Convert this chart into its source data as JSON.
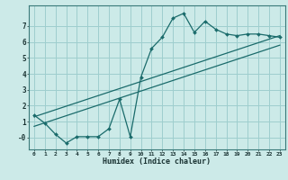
{
  "xlabel": "Humidex (Indice chaleur)",
  "ylabel": "",
  "bg_color": "#cceae8",
  "grid_color": "#9ecece",
  "line_color": "#1a6b6b",
  "xlim": [
    -0.5,
    23.5
  ],
  "ylim": [
    -0.75,
    8.3
  ],
  "xticks": [
    0,
    1,
    2,
    3,
    4,
    5,
    6,
    7,
    8,
    9,
    10,
    11,
    12,
    13,
    14,
    15,
    16,
    17,
    18,
    19,
    20,
    21,
    22,
    23
  ],
  "yticks": [
    0,
    1,
    2,
    3,
    4,
    5,
    6,
    7
  ],
  "ytick_labels": [
    "-0",
    "1",
    "2",
    "3",
    "4",
    "5",
    "6",
    "7"
  ],
  "main_x": [
    0,
    1,
    2,
    3,
    4,
    5,
    6,
    7,
    8,
    9,
    10,
    11,
    12,
    13,
    14,
    15,
    16,
    17,
    18,
    19,
    20,
    21,
    22,
    23
  ],
  "main_y": [
    1.4,
    0.9,
    0.2,
    -0.35,
    0.05,
    0.05,
    0.05,
    0.55,
    2.4,
    0.05,
    3.8,
    5.6,
    6.3,
    7.5,
    7.8,
    6.6,
    7.3,
    6.8,
    6.5,
    6.4,
    6.5,
    6.5,
    6.4,
    6.3
  ],
  "line1_x": [
    0,
    23
  ],
  "line1_y": [
    0.7,
    5.8
  ],
  "line2_x": [
    0,
    23
  ],
  "line2_y": [
    1.3,
    6.4
  ]
}
